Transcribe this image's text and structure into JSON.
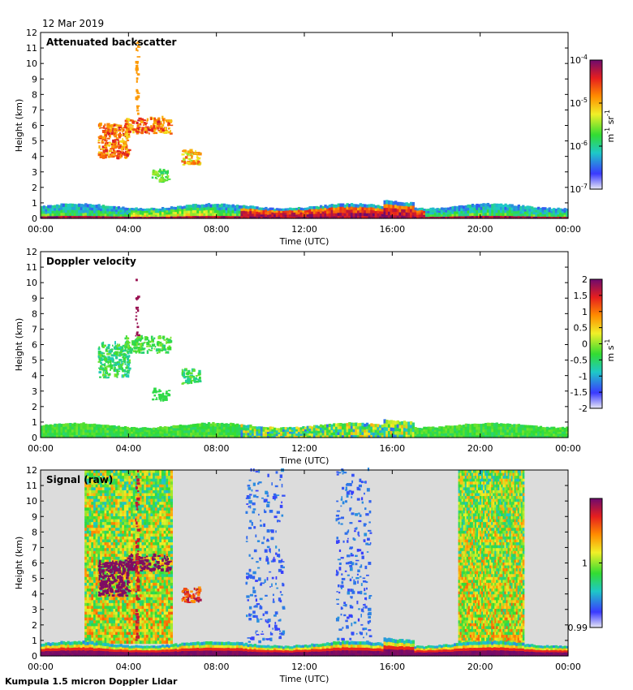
{
  "header": {
    "date": "12 Mar 2019"
  },
  "footer": {
    "label": "Kumpula 1.5 micron Doppler Lidar"
  },
  "chart_data": [
    {
      "type": "heatmap",
      "title": "Attenuated backscatter",
      "xlabel": "Time (UTC)",
      "ylabel": "Height (km)",
      "x_ticks": [
        "00:00",
        "04:00",
        "08:00",
        "12:00",
        "16:00",
        "20:00",
        "00:00"
      ],
      "xlim_hours": [
        0,
        24
      ],
      "ylim": [
        0,
        12
      ],
      "y_ticks": [
        0,
        1,
        2,
        3,
        4,
        5,
        6,
        7,
        8,
        9,
        10,
        11,
        12
      ],
      "colorbar": {
        "unit_base": "m",
        "unit_exp1": "-1",
        "unit_mid": " sr",
        "unit_exp2": "-1",
        "ticks": [
          {
            "value": -7,
            "base": "10",
            "exp": "-7"
          },
          {
            "value": -6,
            "base": "10",
            "exp": "-6"
          },
          {
            "value": -5,
            "base": "10",
            "exp": "-5"
          },
          {
            "value": -4,
            "base": "10",
            "exp": "-4"
          }
        ],
        "range": [
          -7,
          -4
        ]
      }
    },
    {
      "type": "heatmap",
      "title": "Doppler velocity",
      "xlabel": "Time (UTC)",
      "ylabel": "Height (km)",
      "x_ticks": [
        "00:00",
        "04:00",
        "08:00",
        "12:00",
        "16:00",
        "20:00",
        "00:00"
      ],
      "xlim_hours": [
        0,
        24
      ],
      "ylim": [
        0,
        12
      ],
      "y_ticks": [
        0,
        1,
        2,
        3,
        4,
        5,
        6,
        7,
        8,
        9,
        10,
        11,
        12
      ],
      "colorbar": {
        "unit_base": "m s",
        "unit_exp1": "-1",
        "ticks": [
          {
            "value": -2,
            "label": "-2"
          },
          {
            "value": -1.5,
            "label": "-1.5"
          },
          {
            "value": -1,
            "label": "-1"
          },
          {
            "value": -0.5,
            "label": "-0.5"
          },
          {
            "value": 0,
            "label": "0"
          },
          {
            "value": 0.5,
            "label": "0.5"
          },
          {
            "value": 1,
            "label": "1"
          },
          {
            "value": 1.5,
            "label": "1.5"
          },
          {
            "value": 2,
            "label": "2"
          }
        ],
        "range": [
          -2,
          2
        ]
      }
    },
    {
      "type": "heatmap",
      "title": "Signal (raw)",
      "xlabel": "Time (UTC)",
      "ylabel": "Height (km)",
      "x_ticks": [
        "00:00",
        "04:00",
        "08:00",
        "12:00",
        "16:00",
        "20:00",
        "00:00"
      ],
      "xlim_hours": [
        0,
        24
      ],
      "ylim": [
        0,
        12
      ],
      "y_ticks": [
        0,
        1,
        2,
        3,
        4,
        5,
        6,
        7,
        8,
        9,
        10,
        11,
        12
      ],
      "colorbar": {
        "ticks": [
          {
            "value": 0.99,
            "label": "0.99"
          },
          {
            "value": 1,
            "label": "1"
          }
        ],
        "range": [
          0.99,
          1.01
        ]
      },
      "noise_bands_hours": [
        [
          2.0,
          6.0
        ],
        [
          19.0,
          22.0
        ]
      ]
    }
  ]
}
